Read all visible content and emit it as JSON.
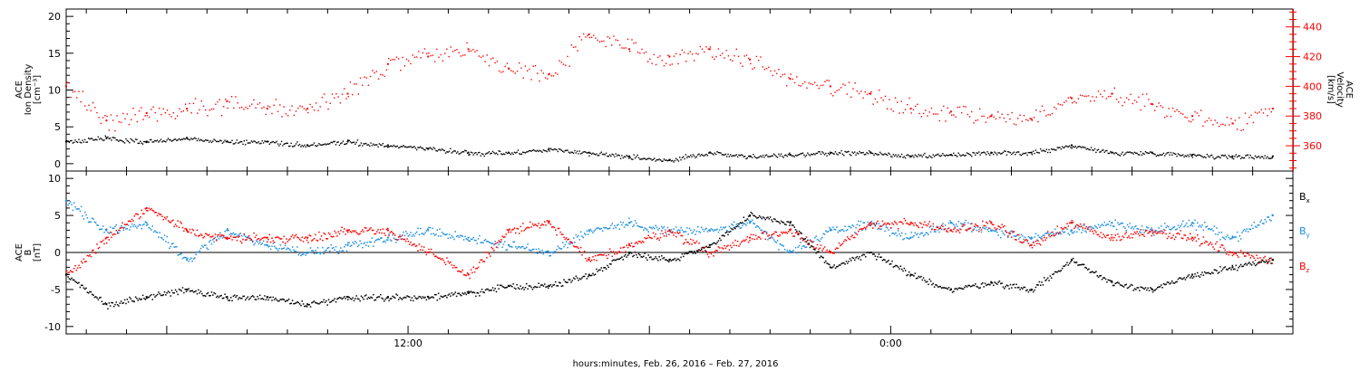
{
  "chart_data": [
    {
      "type": "scatter",
      "panel": "top",
      "xlabel": "hours:minutes, Feb. 26, 2016 – Feb. 27, 2016",
      "x_tick_labels": [
        "12:00",
        "0:00"
      ],
      "left_axis": {
        "label_lines": [
          "ACE",
          "Ion Density",
          "[cm⁻³]"
        ],
        "ylim": [
          -1,
          21
        ],
        "ticks": [
          0,
          5,
          10,
          15,
          20
        ],
        "color": "#000000"
      },
      "right_axis": {
        "label_lines": [
          "ACE",
          "Velocity",
          "[km/s]"
        ],
        "ylim": [
          343,
          452
        ],
        "ticks": [
          360,
          380,
          400,
          420,
          440
        ],
        "color": "#ff0000"
      },
      "series": [
        {
          "axis": "left",
          "color": "#000000",
          "x_hours": [
            0,
            1,
            2,
            3,
            4,
            5,
            6,
            7,
            8,
            9,
            10,
            11,
            12,
            13,
            14,
            15,
            16,
            17,
            18,
            19,
            20,
            21,
            22,
            23,
            24,
            25,
            26,
            27,
            28,
            29,
            30
          ],
          "values": [
            3.0,
            3.5,
            3.0,
            3.5,
            3.0,
            3.0,
            2.5,
            3.0,
            2.5,
            2.0,
            1.5,
            1.5,
            2.0,
            1.5,
            1.0,
            0.5,
            1.5,
            1.0,
            1.2,
            1.5,
            1.5,
            1.0,
            1.2,
            1.5,
            1.5,
            2.5,
            1.5,
            1.5,
            1.2,
            1.0,
            1.0
          ]
        },
        {
          "axis": "right",
          "color": "#ff0000",
          "x_hours": [
            0,
            1,
            2,
            3,
            4,
            5,
            6,
            7,
            8,
            9,
            10,
            11,
            12,
            13,
            14,
            15,
            16,
            17,
            18,
            19,
            20,
            21,
            22,
            23,
            24,
            25,
            26,
            27,
            28,
            29,
            30
          ],
          "values": [
            400,
            377,
            382,
            385,
            390,
            385,
            385,
            395,
            415,
            420,
            425,
            412,
            408,
            435,
            425,
            420,
            425,
            418,
            405,
            400,
            395,
            385,
            383,
            380,
            378,
            392,
            395,
            388,
            380,
            375,
            385
          ]
        }
      ]
    },
    {
      "type": "scatter",
      "panel": "bottom",
      "y_axis": {
        "label_lines": [
          "ACE",
          "B",
          "[nT]"
        ],
        "ylim": [
          -11,
          11
        ],
        "ticks": [
          -10,
          -5,
          0,
          5,
          10
        ]
      },
      "zero_line": 0,
      "series": [
        {
          "name": "B",
          "subscript": "x",
          "color": "#000000",
          "x_hours": [
            0,
            1,
            2,
            3,
            4,
            5,
            6,
            7,
            8,
            9,
            10,
            11,
            12,
            13,
            14,
            15,
            16,
            17,
            18,
            19,
            20,
            21,
            22,
            23,
            24,
            25,
            26,
            27,
            28,
            29,
            30
          ],
          "values": [
            -3,
            -7,
            -6,
            -5,
            -6,
            -6,
            -7,
            -6,
            -6,
            -6,
            -5.5,
            -4.5,
            -4.5,
            -3,
            0,
            -1,
            1,
            5,
            4,
            -2,
            0,
            -3,
            -5,
            -4,
            -5,
            -1,
            -4,
            -5,
            -3,
            -2,
            -1
          ]
        },
        {
          "name": "B",
          "subscript": "y",
          "color": "#1f8fdf",
          "x_hours": [
            0,
            1,
            2,
            3,
            4,
            5,
            6,
            7,
            8,
            9,
            10,
            11,
            12,
            13,
            14,
            15,
            16,
            17,
            18,
            19,
            20,
            21,
            22,
            23,
            24,
            25,
            26,
            27,
            28,
            29,
            30
          ],
          "values": [
            7,
            3,
            4,
            -1,
            3,
            1,
            0,
            1,
            2,
            3,
            2,
            1,
            0,
            3,
            4,
            3,
            3,
            4,
            0,
            3,
            4,
            2,
            4,
            3,
            2,
            3,
            4,
            3,
            4,
            2,
            5
          ]
        },
        {
          "name": "B",
          "subscript": "z",
          "color": "#ff0000",
          "x_hours": [
            0,
            1,
            2,
            3,
            4,
            5,
            6,
            7,
            8,
            9,
            10,
            11,
            12,
            13,
            14,
            15,
            16,
            17,
            18,
            19,
            20,
            21,
            22,
            23,
            24,
            25,
            26,
            27,
            28,
            29,
            30
          ],
          "values": [
            -3,
            2,
            6,
            3,
            2,
            2,
            2,
            3,
            3,
            0,
            -3,
            3,
            4,
            -1,
            1,
            3,
            0,
            2,
            3,
            0,
            4,
            4,
            3,
            4,
            1,
            4,
            2,
            3,
            2,
            0,
            -1
          ]
        }
      ]
    }
  ]
}
